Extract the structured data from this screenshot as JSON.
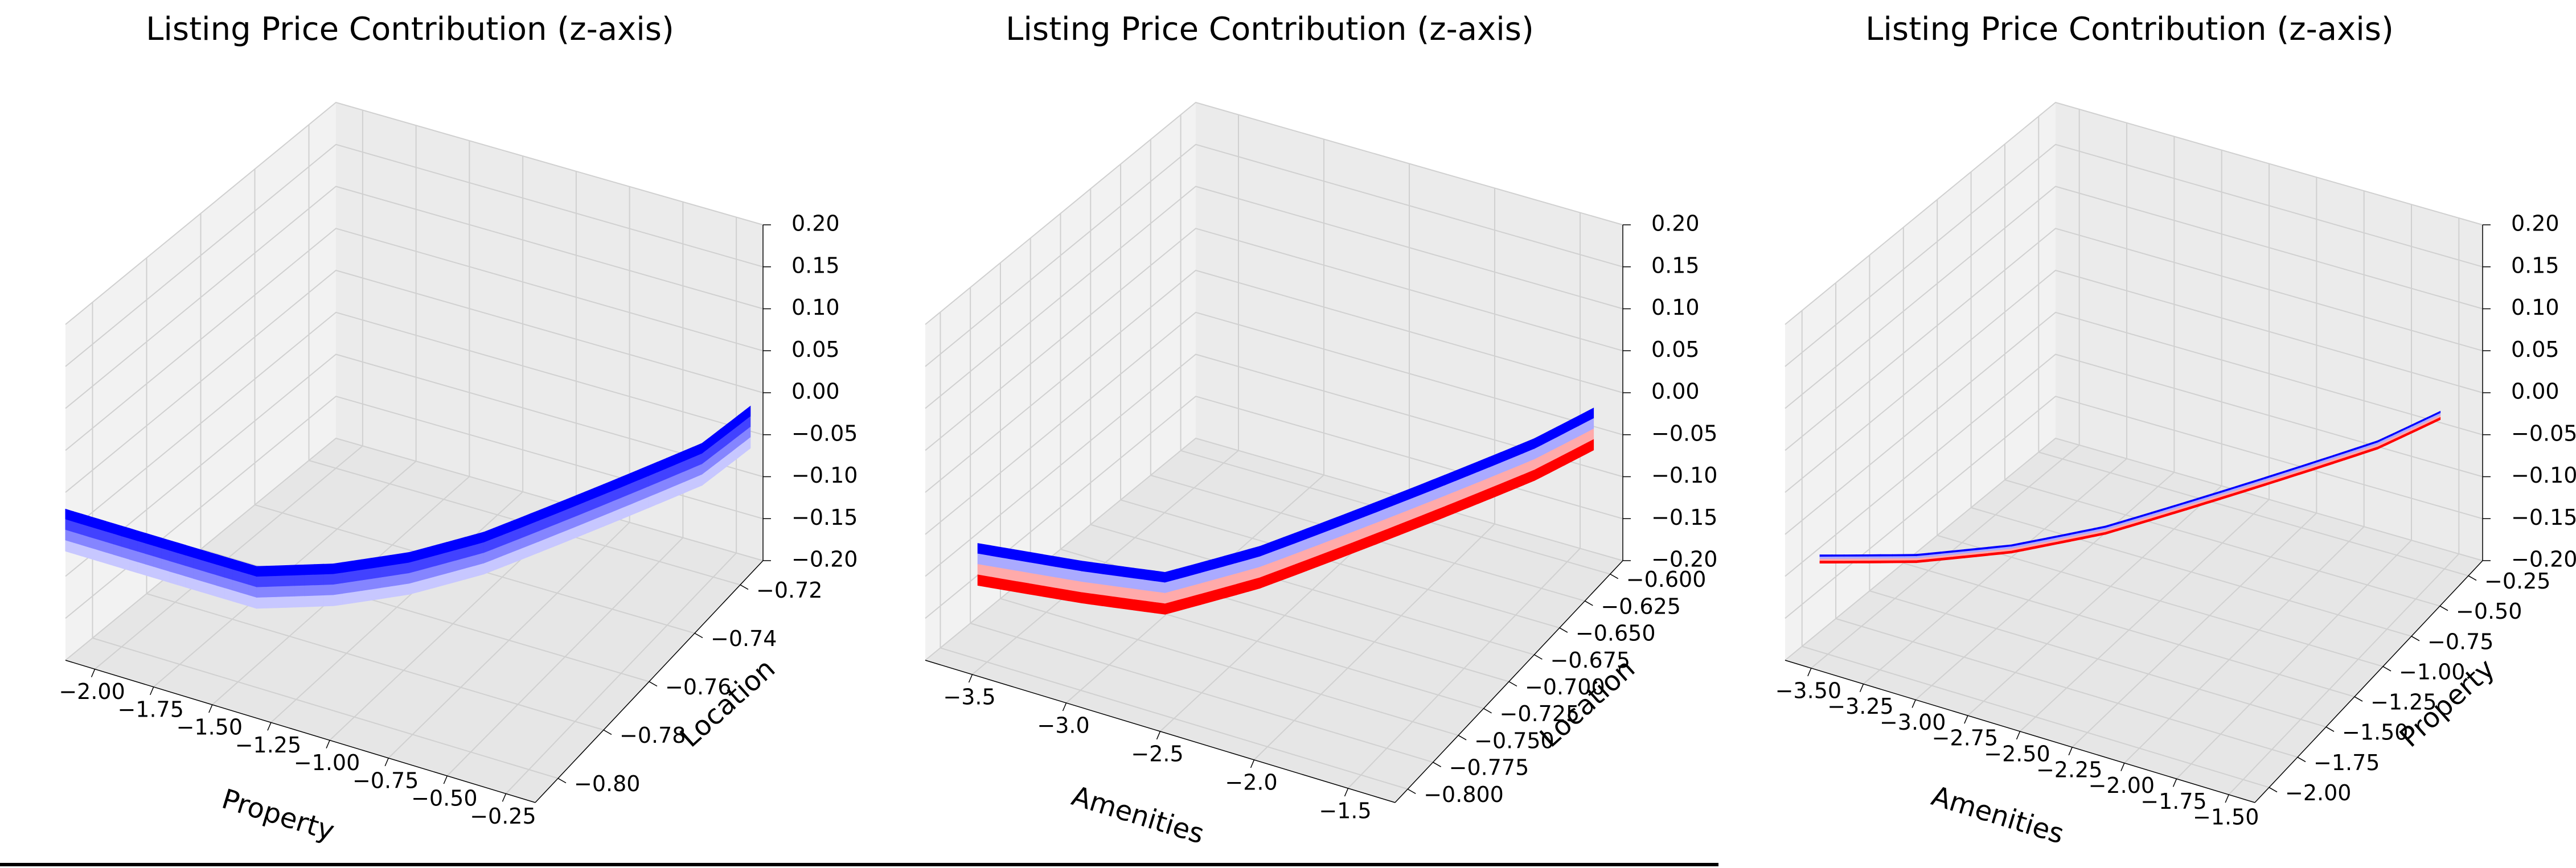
{
  "figure": {
    "colors": {
      "blue": "#0000ff",
      "white": "#f7f7ff",
      "red": "#ff0000",
      "pane": "#f2f2f2",
      "grid": "#d0d0d0",
      "axis": "#000000"
    }
  },
  "chart_data": [
    {
      "type": "surface",
      "title": "Listing Price Contribution (z-axis)",
      "xlabel": "Property",
      "ylabel": "Location",
      "zlabel": "",
      "xlim": [
        -2.1,
        -0.2
      ],
      "ylim": [
        -0.8,
        -0.71
      ],
      "zlim": [
        -0.2,
        0.2
      ],
      "xticks": [
        "−2.00",
        "−1.75",
        "−1.50",
        "−1.25",
        "−1.00",
        "−0.75",
        "−0.50",
        "−0.25"
      ],
      "yticks": [
        "−0.80",
        "−0.78",
        "−0.76",
        "−0.74",
        "−0.72"
      ],
      "zticks": [
        "−0.20",
        "−0.15",
        "−0.10",
        "−0.05",
        "0.00",
        "0.05",
        "0.10",
        "0.15",
        "0.20"
      ],
      "colormap": "bwr",
      "series": [
        {
          "x": [
            -2.1,
            -1.9,
            -1.7,
            -1.5,
            -1.3,
            -1.1,
            -0.9,
            -0.7,
            -0.5,
            -0.3,
            -0.2
          ],
          "y": [
            -0.8,
            -0.795,
            -0.79,
            -0.785,
            -0.775,
            -0.765,
            -0.755,
            -0.745,
            -0.735,
            -0.725,
            -0.715
          ],
          "z": [
            -0.02,
            -0.04,
            -0.06,
            -0.08,
            -0.09,
            -0.09,
            -0.08,
            -0.06,
            -0.04,
            -0.02,
            0.0
          ]
        }
      ]
    },
    {
      "type": "surface",
      "title": "Listing Price Contribution (z-axis)",
      "xlabel": "Amenities",
      "ylabel": "Location",
      "zlabel": "",
      "xlim": [
        -3.6,
        -1.2
      ],
      "ylim": [
        -0.8,
        -0.6
      ],
      "zlim": [
        -0.2,
        0.2
      ],
      "xticks": [
        "−3.5",
        "−3.0",
        "−2.5",
        "−2.0",
        "−1.5"
      ],
      "yticks": [
        "−0.800",
        "−0.775",
        "−0.750",
        "−0.725",
        "−0.700",
        "−0.675",
        "−0.650",
        "−0.625",
        "−0.600"
      ],
      "zticks": [
        "−0.20",
        "−0.15",
        "−0.10",
        "−0.05",
        "0.00",
        "0.05",
        "0.10",
        "0.15",
        "0.20"
      ],
      "colormap": "bwr",
      "series": [
        {
          "x": [
            -3.4,
            -3.0,
            -2.7,
            -2.4,
            -2.1,
            -1.8,
            -1.5,
            -1.3
          ],
          "y": [
            -0.79,
            -0.77,
            -0.75,
            -0.72,
            -0.69,
            -0.66,
            -0.63,
            -0.61
          ],
          "z": [
            -0.06,
            -0.08,
            -0.1,
            -0.09,
            -0.07,
            -0.05,
            -0.03,
            -0.01
          ]
        }
      ]
    },
    {
      "type": "surface",
      "title": "Listing Price Contribution (z-axis)",
      "xlabel": "Amenities",
      "ylabel": "Property",
      "zlabel": "",
      "xlim": [
        -3.6,
        -1.4
      ],
      "ylim": [
        -2.1,
        -0.1
      ],
      "zlim": [
        -0.2,
        0.2
      ],
      "xticks": [
        "−3.50",
        "−3.25",
        "−3.00",
        "−2.75",
        "−2.50",
        "−2.25",
        "−2.00",
        "−1.75",
        "−1.50"
      ],
      "yticks": [
        "−2.00",
        "−1.75",
        "−1.50",
        "−1.25",
        "−1.00",
        "−0.75",
        "−0.50",
        "−0.25"
      ],
      "zticks": [
        "−0.20",
        "−0.15",
        "−0.10",
        "−0.05",
        "0.00",
        "0.05",
        "0.10",
        "0.15",
        "0.20"
      ],
      "colormap": "bwr",
      "series": [
        {
          "x": [
            -3.5,
            -3.2,
            -2.9,
            -2.6,
            -2.3,
            -2.0,
            -1.7,
            -1.5
          ],
          "y": [
            -2.0,
            -1.75,
            -1.5,
            -1.25,
            -1.0,
            -0.75,
            -0.5,
            -0.3
          ],
          "z": [
            -0.08,
            -0.09,
            -0.09,
            -0.08,
            -0.06,
            -0.04,
            -0.02,
            0.0
          ]
        }
      ]
    }
  ]
}
